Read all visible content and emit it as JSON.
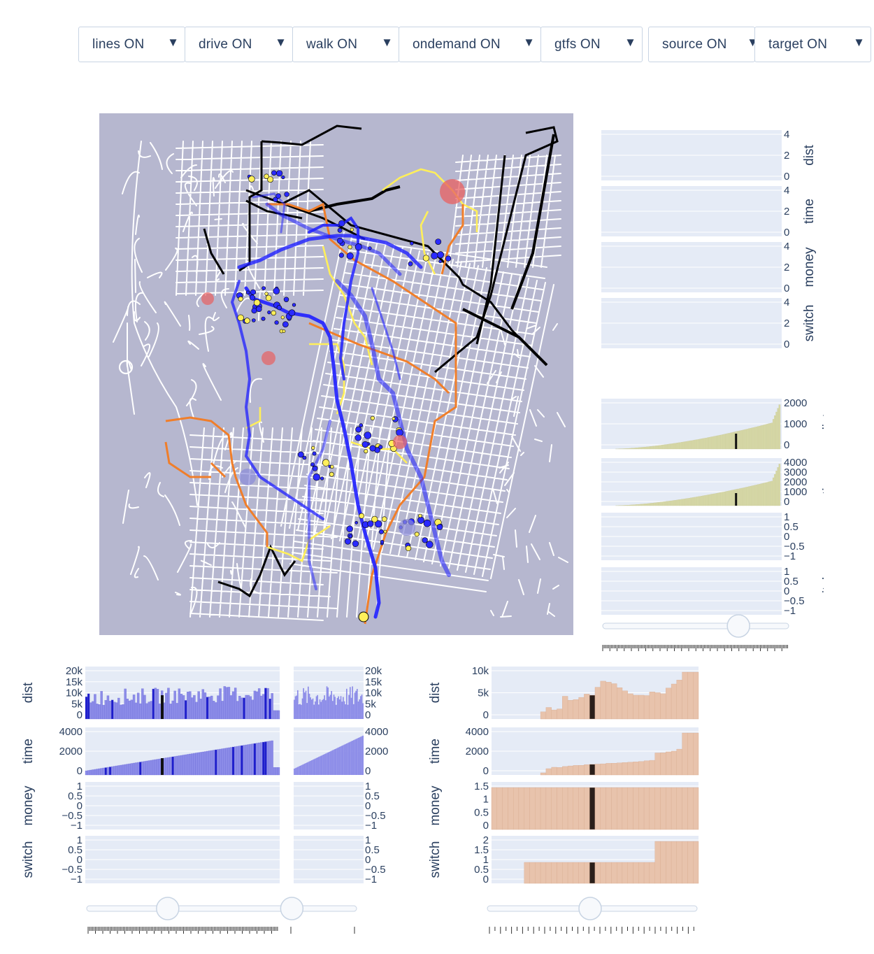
{
  "toolbar": {
    "dropdowns": [
      {
        "label": "lines ON"
      },
      {
        "label": "drive ON"
      },
      {
        "label": "walk ON"
      },
      {
        "label": "ondemand ON"
      },
      {
        "label": "gtfs ON"
      },
      {
        "label": "source ON"
      },
      {
        "label": "target ON"
      }
    ],
    "arrow": "▼"
  },
  "colors": {
    "map_bg": "#b6b7cf",
    "street": "#ffffff",
    "plot_bg": "#e5ebf6",
    "blue_route": "#1f1fff",
    "orange_route": "#f07e2a",
    "yellow_route": "#ffef5a",
    "black_route": "#000000",
    "olive_bar": "#d6d8a6",
    "blue_bar": "#8c8ce8",
    "blue_bar_dark": "#1d1dcc",
    "peach_bar": "#e8c3ac",
    "dark_bar": "#2a1f1a"
  },
  "right_top": {
    "panels": [
      {
        "label": "dist",
        "ticks": [
          "4",
          "2",
          "0"
        ]
      },
      {
        "label": "time",
        "ticks": [
          "4",
          "2",
          "0"
        ]
      },
      {
        "label": "money",
        "ticks": [
          "4",
          "2",
          "0"
        ]
      },
      {
        "label": "switch",
        "ticks": [
          "4",
          "2",
          "0"
        ]
      }
    ]
  },
  "right_bottom": {
    "panels": [
      {
        "label": "dist",
        "ticks": [
          "2000",
          "1000",
          "0"
        ]
      },
      {
        "label": "time",
        "ticks": [
          "4000",
          "3000",
          "2000",
          "1000",
          "0"
        ]
      },
      {
        "label": "money",
        "ticks": [
          "1",
          "0.5",
          "0",
          "−0.5",
          "−1"
        ]
      },
      {
        "label": "switch",
        "ticks": [
          "1",
          "0.5",
          "0",
          "−0.5",
          "−1"
        ]
      }
    ],
    "slider_value": 0.73
  },
  "bottom_left": {
    "panels": [
      {
        "label": "dist",
        "ticks": [
          "20k",
          "15k",
          "10k",
          "5k",
          "0"
        ]
      },
      {
        "label": "time",
        "ticks": [
          "4000",
          "2000",
          "0"
        ]
      },
      {
        "label": "money",
        "ticks": [
          "1",
          "0.5",
          "0",
          "−0.5",
          "−1"
        ]
      },
      {
        "label": "switch",
        "ticks": [
          "1",
          "0.5",
          "0",
          "−0.5",
          "−1"
        ]
      }
    ],
    "slider_values": [
      0.3,
      0.76
    ]
  },
  "bottom_right": {
    "panels": [
      {
        "label": "dist",
        "ticks": [
          "10k",
          "5k",
          "0"
        ]
      },
      {
        "label": "time",
        "ticks": [
          "4000",
          "2000",
          "0"
        ]
      },
      {
        "label": "money",
        "ticks": [
          "1.5",
          "1",
          "0.5",
          "0"
        ]
      },
      {
        "label": "switch",
        "ticks": [
          "2",
          "1.5",
          "1",
          "0.5",
          "0"
        ]
      }
    ],
    "slider_value": 0.49,
    "bars": {
      "dist": [
        0,
        0,
        0,
        0,
        0,
        0,
        0,
        0,
        0,
        2,
        3.2,
        2.5,
        2.8,
        6.3,
        5.2,
        5.4,
        6.0,
        6.9,
        6.6,
        8.8,
        10.5,
        10.2,
        9.8,
        8.7,
        7.8,
        7.0,
        6.6,
        6.6,
        6.5,
        7.5,
        7.3,
        7.0,
        8.6,
        9.7,
        10.8,
        13,
        13,
        13
      ],
      "time": [
        0,
        0,
        0,
        0,
        0,
        0,
        0,
        0,
        0,
        260,
        780,
        950,
        930,
        1050,
        1120,
        1180,
        1200,
        1270,
        1310,
        1340,
        1380,
        1440,
        1460,
        1490,
        1540,
        1580,
        1620,
        1670,
        1750,
        1810,
        2730,
        2760,
        2860,
        2950,
        3200,
        5200,
        5200,
        5200
      ],
      "money": [
        1.5,
        1.5,
        1.5,
        1.5,
        1.5,
        1.5,
        1.5,
        1.5,
        1.5,
        1.5,
        1.5,
        1.5,
        1.5,
        1.5,
        1.5,
        1.5,
        1.5,
        1.5,
        1.5,
        1.5,
        1.5,
        1.5,
        1.5,
        1.5,
        1.5,
        1.5,
        1.5,
        1.5,
        1.5,
        1.5,
        1.5,
        1.5,
        1.5,
        1.5,
        1.5,
        1.5,
        1.5,
        1.5
      ],
      "switch": [
        0,
        0,
        0,
        0,
        0,
        0,
        1,
        1,
        1,
        1,
        1,
        1,
        1,
        1,
        1,
        1,
        1,
        1,
        1,
        1,
        1,
        1,
        1,
        1,
        1,
        1,
        1,
        1,
        1,
        1,
        2,
        2,
        2,
        2,
        2,
        2,
        2,
        2
      ],
      "highlight_index": 18
    }
  }
}
